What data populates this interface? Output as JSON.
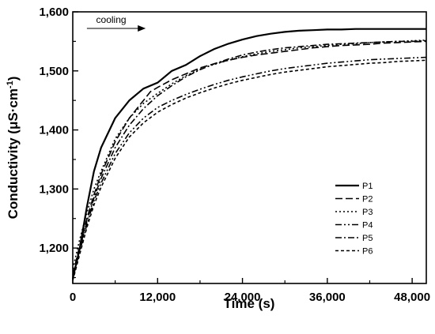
{
  "chart_data": {
    "type": "line",
    "xlabel": "Time (s)",
    "ylabel_main": "Conductivity (",
    "ylabel_mu": "μ",
    "ylabel_unit": "S·cm",
    "ylabel_exp": "-1",
    "ylabel_close": ")",
    "xlim": [
      0,
      50000
    ],
    "ylim": [
      1140,
      1600
    ],
    "xticks": [
      0,
      12000,
      24000,
      36000,
      48000
    ],
    "xtick_labels": [
      "0",
      "12,000",
      "24,000",
      "36,000",
      "48,000"
    ],
    "yticks": [
      1200,
      1300,
      1400,
      1500,
      1600
    ],
    "ytick_labels": [
      "1,200",
      "1,300",
      "1,400",
      "1,500",
      "1,600"
    ],
    "grid": false,
    "legend_position": "right",
    "annotation": {
      "text": "cooling",
      "arrow_from_x": 2000,
      "arrow_to_x": 10200,
      "y": 1572
    },
    "series": [
      {
        "name": "P1",
        "dash": "",
        "x": [
          0,
          1000,
          2000,
          3000,
          4000,
          6000,
          8000,
          10000,
          12000,
          14000,
          16000,
          18000,
          20000,
          22000,
          24000,
          26000,
          28000,
          30000,
          32000,
          34000,
          36000,
          38000,
          40000,
          42000,
          44000,
          46000,
          48000,
          50000
        ],
        "y": [
          1148,
          1200,
          1270,
          1330,
          1370,
          1420,
          1450,
          1470,
          1480,
          1500,
          1510,
          1525,
          1537,
          1546,
          1553,
          1559,
          1563,
          1566,
          1568,
          1569,
          1570,
          1570,
          1571,
          1571,
          1571,
          1571,
          1571,
          1571
        ]
      },
      {
        "name": "P2",
        "dash": "9 4",
        "x": [
          0,
          1000,
          2000,
          3000,
          4000,
          6000,
          8000,
          10000,
          11000,
          12000,
          14000,
          16000,
          18000,
          20000,
          22000,
          24000,
          26000,
          28000,
          30000,
          32000,
          34000,
          36000,
          38000,
          40000,
          42000,
          44000,
          46000,
          48000,
          50000
        ],
        "y": [
          1155,
          1205,
          1250,
          1290,
          1325,
          1380,
          1420,
          1450,
          1465,
          1472,
          1485,
          1495,
          1505,
          1512,
          1518,
          1523,
          1527,
          1530,
          1533,
          1536,
          1539,
          1541,
          1543,
          1544,
          1545,
          1547,
          1548,
          1549,
          1550
        ]
      },
      {
        "name": "P3",
        "dash": "2 3",
        "x": [
          0,
          1000,
          2000,
          3000,
          4000,
          6000,
          8000,
          10000,
          12000,
          14000,
          16000,
          18000,
          20000,
          22000,
          24000,
          26000,
          28000,
          30000,
          32000,
          34000,
          36000,
          38000,
          40000,
          42000,
          44000,
          46000,
          48000,
          50000
        ],
        "y": [
          1165,
          1215,
          1260,
          1300,
          1330,
          1385,
          1420,
          1445,
          1462,
          1478,
          1492,
          1503,
          1511,
          1518,
          1524,
          1529,
          1533,
          1536,
          1539,
          1541,
          1543,
          1545,
          1546,
          1548,
          1549,
          1550,
          1551,
          1552
        ]
      },
      {
        "name": "P4",
        "dash": "8 3 2 3 2 3",
        "x": [
          0,
          1000,
          2000,
          3000,
          4000,
          6000,
          8000,
          10000,
          12000,
          14000,
          16000,
          18000,
          20000,
          22000,
          24000,
          26000,
          28000,
          30000,
          32000,
          34000,
          36000,
          38000,
          40000,
          42000,
          44000,
          46000,
          48000,
          50000
        ],
        "y": [
          1150,
          1195,
          1240,
          1280,
          1310,
          1360,
          1395,
          1420,
          1438,
          1450,
          1460,
          1469,
          1477,
          1484,
          1490,
          1495,
          1500,
          1504,
          1507,
          1510,
          1513,
          1515,
          1517,
          1519,
          1520,
          1521,
          1522,
          1523
        ]
      },
      {
        "name": "P5",
        "dash": "8 3 2 3",
        "x": [
          0,
          1000,
          2000,
          3000,
          4000,
          6000,
          8000,
          10000,
          12000,
          14000,
          16000,
          18000,
          20000,
          22000,
          24000,
          26000,
          28000,
          30000,
          32000,
          34000,
          36000,
          38000,
          40000,
          42000,
          44000,
          46000,
          48000,
          50000
        ],
        "y": [
          1152,
          1200,
          1245,
          1285,
          1318,
          1370,
          1408,
          1436,
          1458,
          1475,
          1490,
          1502,
          1512,
          1520,
          1527,
          1532,
          1536,
          1539,
          1541,
          1543,
          1545,
          1546,
          1547,
          1548,
          1549,
          1550,
          1550,
          1551
        ]
      },
      {
        "name": "P6",
        "dash": "4 3",
        "x": [
          0,
          1000,
          2000,
          3000,
          4000,
          6000,
          8000,
          10000,
          12000,
          14000,
          16000,
          18000,
          20000,
          22000,
          24000,
          26000,
          28000,
          30000,
          32000,
          34000,
          36000,
          38000,
          40000,
          42000,
          44000,
          46000,
          48000,
          50000
        ],
        "y": [
          1145,
          1190,
          1235,
          1273,
          1303,
          1352,
          1388,
          1412,
          1430,
          1443,
          1454,
          1463,
          1471,
          1478,
          1484,
          1489,
          1494,
          1498,
          1501,
          1504,
          1507,
          1509,
          1511,
          1513,
          1514,
          1516,
          1517,
          1518
        ]
      }
    ]
  }
}
